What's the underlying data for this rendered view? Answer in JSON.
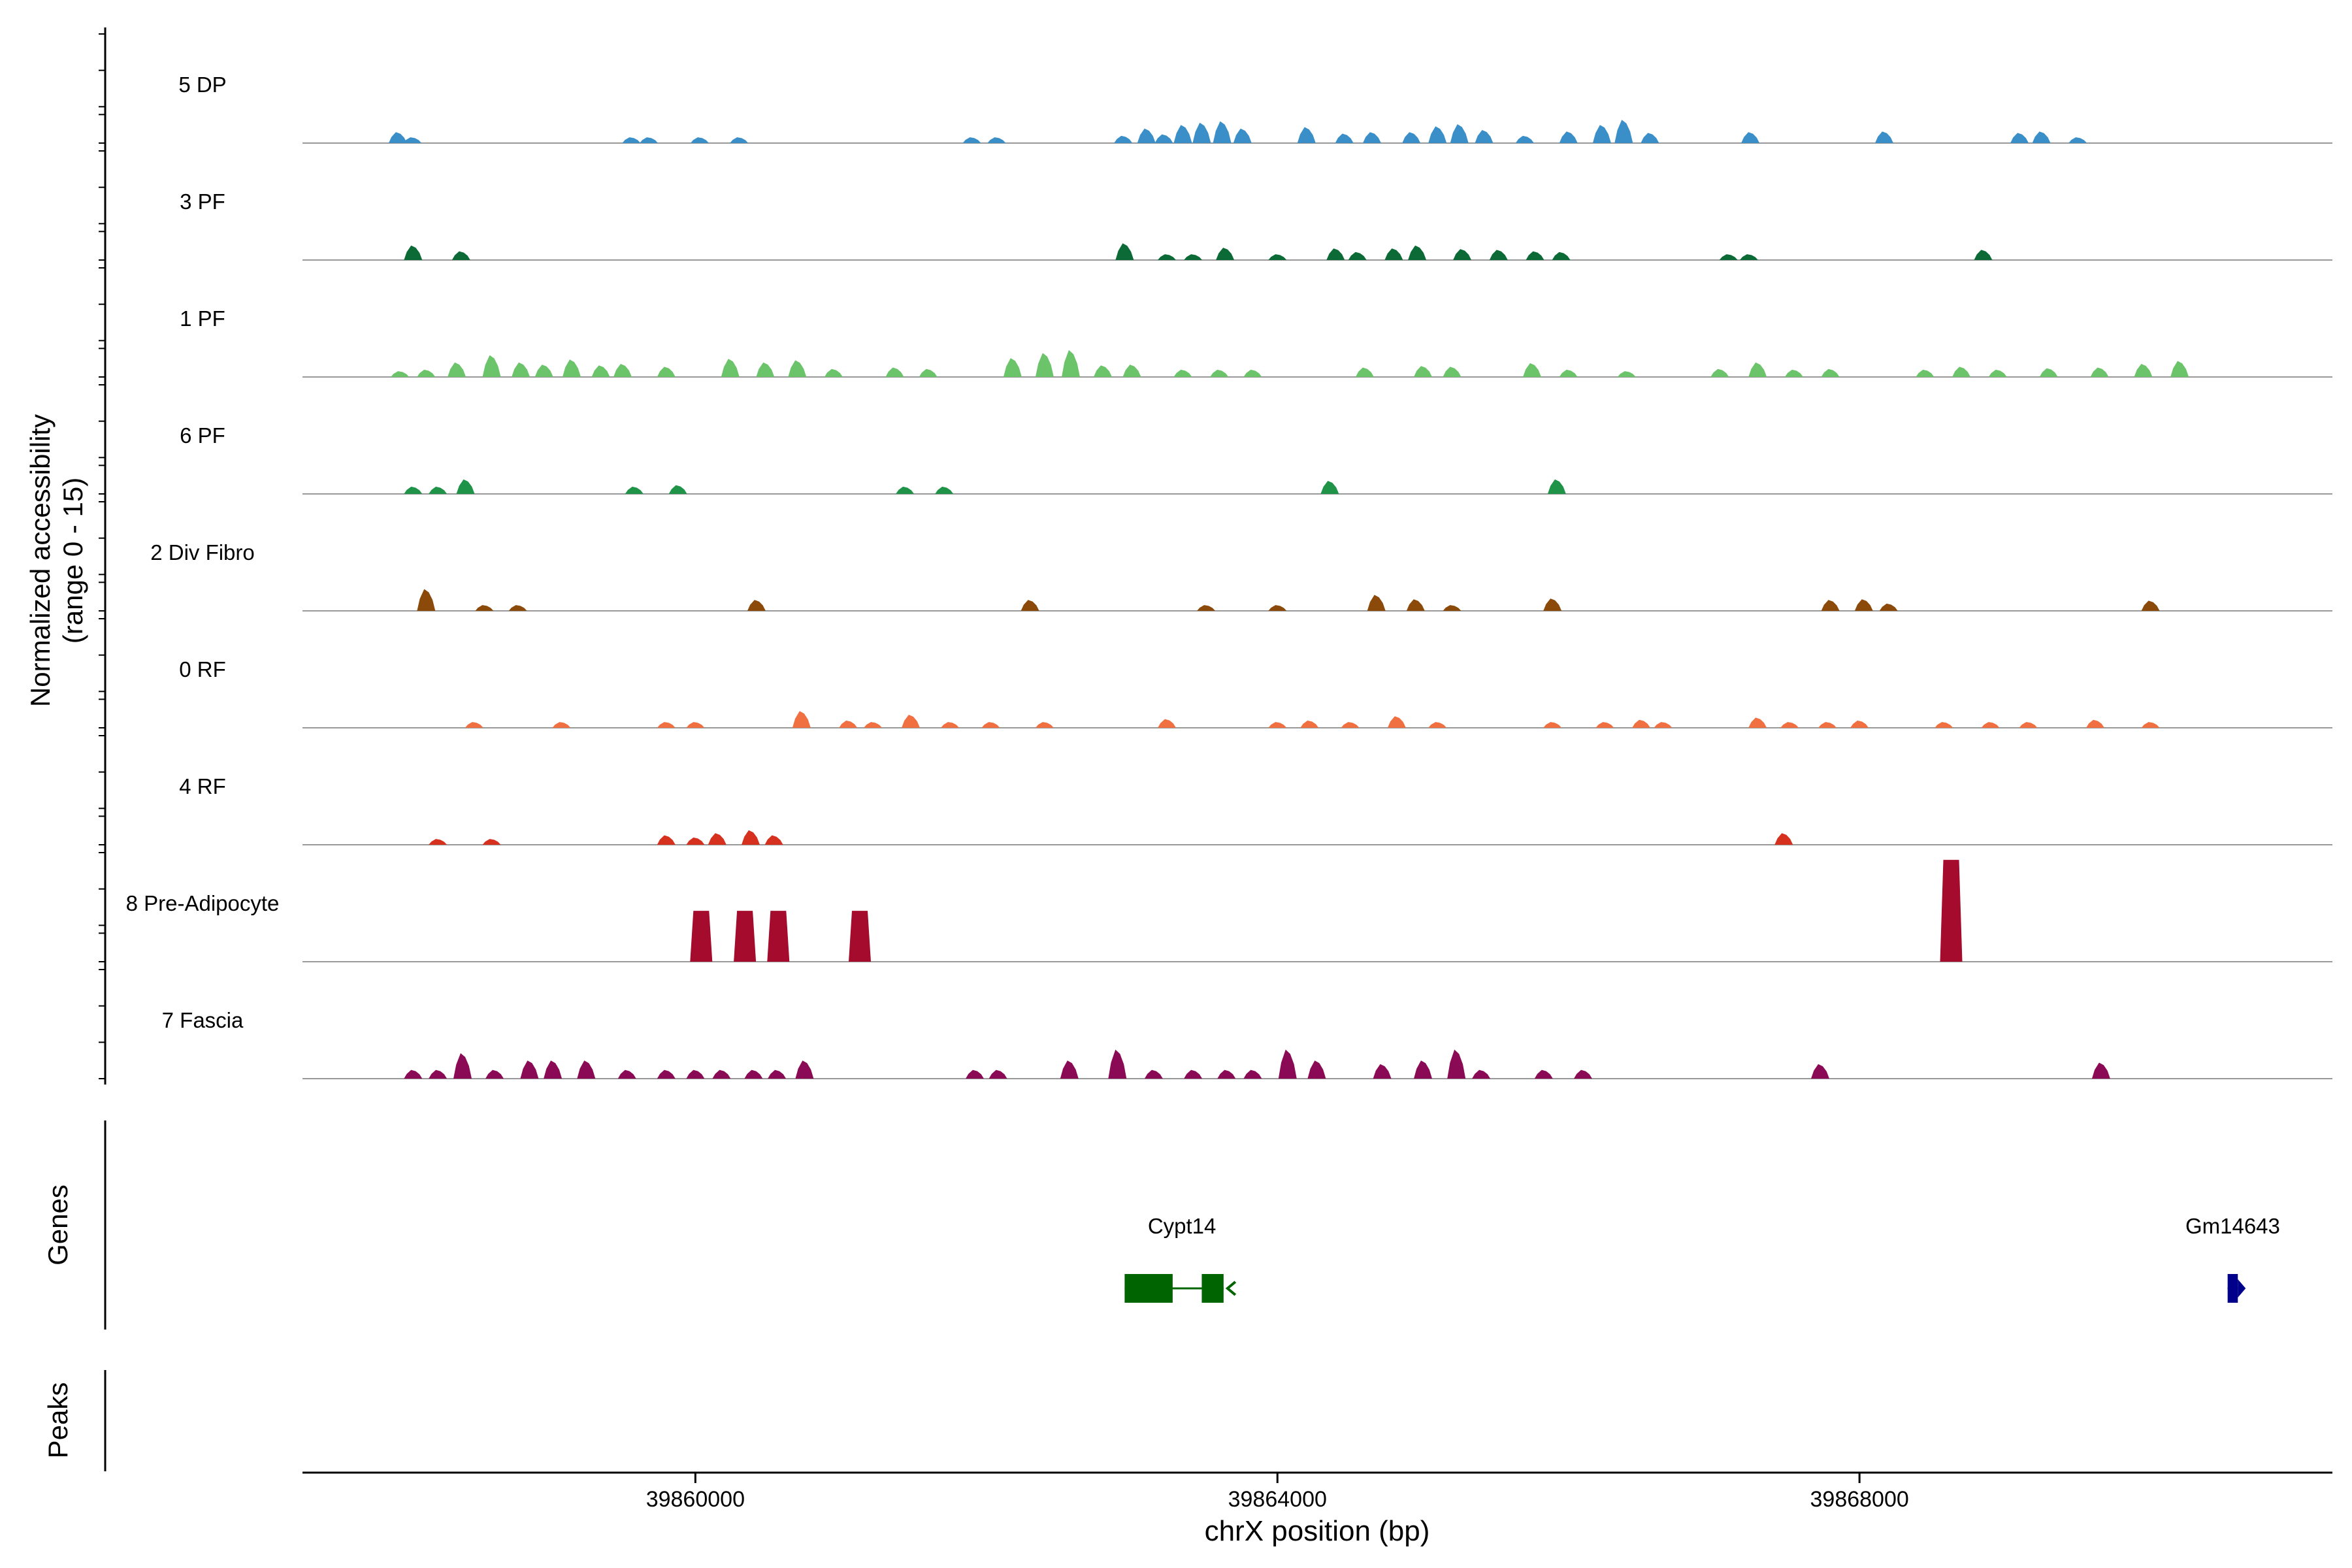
{
  "chart_data": {
    "type": "area",
    "title": "",
    "ylabel_line1": "Normalized accessibility",
    "ylabel_line2": "(range 0 - 15)",
    "xlabel": "chrX position (bp)",
    "xlim": [
      39857300,
      39871250
    ],
    "ylim": [
      0,
      15
    ],
    "xticks": [
      39860000,
      39864000,
      39868000
    ],
    "xtick_labels": [
      "39860000",
      "39864000",
      "39868000"
    ],
    "colors": {
      "baseline": "#999999",
      "axis": "#000000",
      "gene_cypt14": "#006400",
      "gene_gm14643": "#00008b"
    },
    "series": [
      {
        "name": "5 DP",
        "color": "#3a8fc8",
        "peaks": [
          [
            39857955,
            1.5
          ],
          [
            39858055,
            0.8
          ],
          [
            39859560,
            0.8
          ],
          [
            39859680,
            0.8
          ],
          [
            39860030,
            0.8
          ],
          [
            39860300,
            0.8
          ],
          [
            39861900,
            0.8
          ],
          [
            39862070,
            0.8
          ],
          [
            39862940,
            1.0
          ],
          [
            39863100,
            2.0
          ],
          [
            39863220,
            1.2
          ],
          [
            39863350,
            2.5
          ],
          [
            39863480,
            2.8
          ],
          [
            39863620,
            3.0
          ],
          [
            39863760,
            2.0
          ],
          [
            39864200,
            2.2
          ],
          [
            39864460,
            1.3
          ],
          [
            39864650,
            1.5
          ],
          [
            39864920,
            1.5
          ],
          [
            39865100,
            2.3
          ],
          [
            39865250,
            2.6
          ],
          [
            39865420,
            1.8
          ],
          [
            39865700,
            1.0
          ],
          [
            39866000,
            1.6
          ],
          [
            39866230,
            2.5
          ],
          [
            39866380,
            3.2
          ],
          [
            39866560,
            1.4
          ],
          [
            39867250,
            1.5
          ],
          [
            39868170,
            1.6
          ],
          [
            39869100,
            1.4
          ],
          [
            39869250,
            1.6
          ],
          [
            39869500,
            0.8
          ]
        ]
      },
      {
        "name": "3 PF",
        "color": "#0b6a35",
        "peaks": [
          [
            39858060,
            2.0
          ],
          [
            39858390,
            1.2
          ],
          [
            39862950,
            2.3
          ],
          [
            39863240,
            0.8
          ],
          [
            39863420,
            0.8
          ],
          [
            39863640,
            1.7
          ],
          [
            39864000,
            0.8
          ],
          [
            39864400,
            1.6
          ],
          [
            39864550,
            1.1
          ],
          [
            39864800,
            1.6
          ],
          [
            39864960,
            2.0
          ],
          [
            39865270,
            1.5
          ],
          [
            39865520,
            1.4
          ],
          [
            39865770,
            1.2
          ],
          [
            39865950,
            1.1
          ],
          [
            39867100,
            0.8
          ],
          [
            39867240,
            0.8
          ],
          [
            39868850,
            1.4
          ]
        ]
      },
      {
        "name": "1 PF",
        "color": "#6cc46a",
        "peaks": [
          [
            39857970,
            0.8
          ],
          [
            39858150,
            1.0
          ],
          [
            39858360,
            2.0
          ],
          [
            39858600,
            3.0
          ],
          [
            39858800,
            2.0
          ],
          [
            39858960,
            1.7
          ],
          [
            39859150,
            2.4
          ],
          [
            39859350,
            1.6
          ],
          [
            39859500,
            1.8
          ],
          [
            39859800,
            1.4
          ],
          [
            39860240,
            2.5
          ],
          [
            39860480,
            2.0
          ],
          [
            39860700,
            2.3
          ],
          [
            39860950,
            1.1
          ],
          [
            39861370,
            1.3
          ],
          [
            39861600,
            1.1
          ],
          [
            39862180,
            2.6
          ],
          [
            39862400,
            3.3
          ],
          [
            39862580,
            3.7
          ],
          [
            39862800,
            1.6
          ],
          [
            39863000,
            1.7
          ],
          [
            39863350,
            1.0
          ],
          [
            39863600,
            1.0
          ],
          [
            39863830,
            1.0
          ],
          [
            39864600,
            1.3
          ],
          [
            39865000,
            1.5
          ],
          [
            39865200,
            1.4
          ],
          [
            39865750,
            1.9
          ],
          [
            39866000,
            1.0
          ],
          [
            39866400,
            0.8
          ],
          [
            39867040,
            1.1
          ],
          [
            39867300,
            2.0
          ],
          [
            39867550,
            1.0
          ],
          [
            39867800,
            1.1
          ],
          [
            39868450,
            1.0
          ],
          [
            39868700,
            1.4
          ],
          [
            39868950,
            1.0
          ],
          [
            39869300,
            1.2
          ],
          [
            39869650,
            1.3
          ],
          [
            39869950,
            1.8
          ],
          [
            39870200,
            2.2
          ]
        ]
      },
      {
        "name": "6 PF",
        "color": "#1f9448",
        "peaks": [
          [
            39858060,
            1.0
          ],
          [
            39858230,
            1.0
          ],
          [
            39858420,
            2.0
          ],
          [
            39859580,
            1.0
          ],
          [
            39859880,
            1.2
          ],
          [
            39861440,
            1.0
          ],
          [
            39861710,
            1.0
          ],
          [
            39864360,
            1.8
          ],
          [
            39865920,
            2.0
          ]
        ]
      },
      {
        "name": "2 Div Fibro",
        "color": "#8b4a0a",
        "peaks": [
          [
            39858150,
            3.0
          ],
          [
            39858550,
            0.8
          ],
          [
            39858780,
            0.8
          ],
          [
            39860420,
            1.5
          ],
          [
            39862300,
            1.5
          ],
          [
            39863510,
            0.8
          ],
          [
            39864000,
            0.8
          ],
          [
            39864680,
            2.2
          ],
          [
            39864950,
            1.6
          ],
          [
            39865200,
            0.8
          ],
          [
            39865890,
            1.7
          ],
          [
            39867800,
            1.5
          ],
          [
            39868030,
            1.6
          ],
          [
            39868200,
            1.0
          ],
          [
            39870000,
            1.4
          ]
        ]
      },
      {
        "name": "0 RF",
        "color": "#f07042",
        "peaks": [
          [
            39858480,
            0.8
          ],
          [
            39859080,
            0.8
          ],
          [
            39859800,
            0.8
          ],
          [
            39860000,
            0.8
          ],
          [
            39860730,
            2.3
          ],
          [
            39861050,
            1.0
          ],
          [
            39861220,
            0.8
          ],
          [
            39861480,
            1.8
          ],
          [
            39861750,
            0.8
          ],
          [
            39862030,
            0.8
          ],
          [
            39862400,
            0.8
          ],
          [
            39863240,
            1.2
          ],
          [
            39864000,
            0.8
          ],
          [
            39864220,
            1.0
          ],
          [
            39864500,
            0.8
          ],
          [
            39864820,
            1.6
          ],
          [
            39865100,
            0.8
          ],
          [
            39865890,
            0.8
          ],
          [
            39866250,
            0.8
          ],
          [
            39866500,
            1.1
          ],
          [
            39866650,
            0.8
          ],
          [
            39867300,
            1.4
          ],
          [
            39867520,
            0.8
          ],
          [
            39867780,
            0.8
          ],
          [
            39868000,
            1.0
          ],
          [
            39868580,
            0.8
          ],
          [
            39868900,
            0.8
          ],
          [
            39869160,
            0.8
          ],
          [
            39869620,
            1.1
          ],
          [
            39870000,
            0.8
          ]
        ]
      },
      {
        "name": "4 RF",
        "color": "#d6301f",
        "peaks": [
          [
            39858230,
            0.8
          ],
          [
            39858600,
            0.8
          ],
          [
            39859800,
            1.3
          ],
          [
            39860000,
            1.0
          ],
          [
            39860150,
            1.6
          ],
          [
            39860380,
            2.0
          ],
          [
            39860540,
            1.3
          ],
          [
            39867480,
            1.6
          ]
        ]
      },
      {
        "name": "8 Pre-Adipocyte",
        "color": "#a50b2c",
        "peaks": [
          [
            39860040,
            7.0
          ],
          [
            39860340,
            7.0
          ],
          [
            39860570,
            7.0
          ],
          [
            39861130,
            7.0
          ],
          [
            39868630,
            14.0
          ]
        ]
      },
      {
        "name": "7 Fascia",
        "color": "#8b0a55",
        "peaks": [
          [
            39858060,
            1.2
          ],
          [
            39858230,
            1.2
          ],
          [
            39858400,
            3.5
          ],
          [
            39858620,
            1.2
          ],
          [
            39858860,
            2.5
          ],
          [
            39859020,
            2.5
          ],
          [
            39859250,
            2.5
          ],
          [
            39859530,
            1.2
          ],
          [
            39859800,
            1.2
          ],
          [
            39860000,
            1.2
          ],
          [
            39860180,
            1.2
          ],
          [
            39860400,
            1.2
          ],
          [
            39860560,
            1.2
          ],
          [
            39860750,
            2.5
          ],
          [
            39861920,
            1.2
          ],
          [
            39862080,
            1.2
          ],
          [
            39862570,
            2.5
          ],
          [
            39862900,
            4.0
          ],
          [
            39863150,
            1.2
          ],
          [
            39863420,
            1.2
          ],
          [
            39863650,
            1.2
          ],
          [
            39863830,
            1.2
          ],
          [
            39864070,
            4.0
          ],
          [
            39864270,
            2.5
          ],
          [
            39864720,
            2.0
          ],
          [
            39865000,
            2.5
          ],
          [
            39865230,
            4.0
          ],
          [
            39865400,
            1.2
          ],
          [
            39865830,
            1.2
          ],
          [
            39866100,
            1.2
          ],
          [
            39867730,
            2.0
          ],
          [
            39869660,
            2.2
          ]
        ]
      }
    ],
    "genes": [
      {
        "name": "Cypt14",
        "exons": [
          [
            39862950,
            39863280
          ],
          [
            39863480,
            39863630
          ]
        ],
        "strand": "-"
      },
      {
        "name": "Gm14643",
        "exons": [
          [
            39870530,
            39870600
          ]
        ],
        "strand": "+"
      }
    ],
    "panels": {
      "genes_label": "Genes",
      "peaks_label": "Peaks"
    }
  }
}
